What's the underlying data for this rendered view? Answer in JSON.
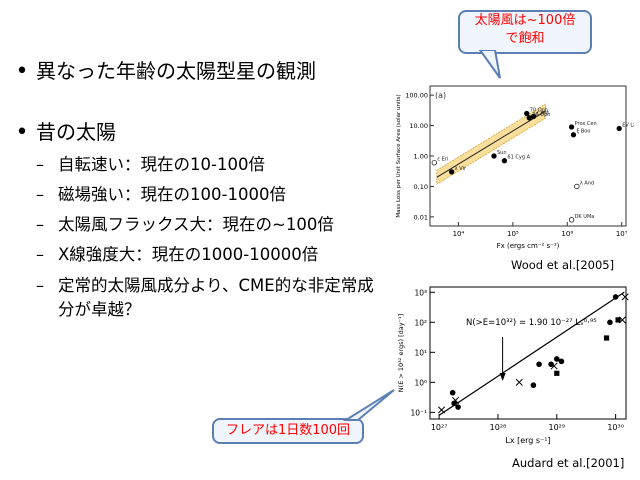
{
  "bullets": {
    "b1": "異なった年齢の太陽型星の観測",
    "b2": "昔の太陽",
    "subs": [
      "自転速い：現在の10-100倍",
      "磁場強い：現在の100-1000倍",
      "太陽風フラックス大：現在の~100倍",
      "X線強度大：現在の1000-10000倍",
      "定常的太陽風成分より、CME的な非定常成分が卓越？"
    ]
  },
  "callouts": {
    "top": [
      "太陽風は~100倍",
      "で飽和"
    ],
    "bottom": "フレアは1日数100回"
  },
  "captions": {
    "top": "Wood et al.[2005]",
    "bottom": "Audard et al.[2001]"
  },
  "chart_data": [
    {
      "type": "scatter",
      "panel_label": "(a)",
      "xlabel": "Fx (ergs cm⁻² s⁻¹)",
      "ylabel": "Mass Loss per Unit Surface Area (solar units)",
      "xscale": "log",
      "yscale": "log",
      "xlim": [
        3000,
        12000000
      ],
      "ylim": [
        0.005,
        200
      ],
      "xticks": [
        "10⁴",
        "10⁵",
        "10⁶",
        "10⁷"
      ],
      "yticks": [
        "0.01",
        "0.10",
        "1.00",
        "10.00",
        "100.00"
      ],
      "points": [
        {
          "x": 3600,
          "y": 0.6,
          "open": true,
          "label": "ε Eri"
        },
        {
          "x": 7500,
          "y": 0.3,
          "open": false,
          "label": "λ Vir"
        },
        {
          "x": 45000,
          "y": 1.0,
          "open": false,
          "label": "Sun"
        },
        {
          "x": 70000,
          "y": 0.7,
          "open": false,
          "label": "61 Cyg A"
        },
        {
          "x": 180000,
          "y": 25.0,
          "open": false,
          "label": "70 Oph"
        },
        {
          "x": 240000,
          "y": 20.0,
          "open": false,
          "label": "ε Ind"
        },
        {
          "x": 200000,
          "y": 18.0,
          "open": false,
          "label": "36 Oph"
        },
        {
          "x": 1200000,
          "y": 9.0,
          "open": false,
          "label": "Prox Cen"
        },
        {
          "x": 1300000,
          "y": 5.0,
          "open": false,
          "label": "ξ Boo"
        },
        {
          "x": 9000000,
          "y": 8.0,
          "open": false,
          "label": "EV Lac"
        },
        {
          "x": 1500000,
          "y": 0.1,
          "open": true,
          "label": "λ And"
        },
        {
          "x": 1200000,
          "y": 0.008,
          "open": true,
          "label": "DK UMa"
        }
      ],
      "fit_line": [
        [
          4000,
          0.2
        ],
        [
          400000,
          30
        ]
      ]
    },
    {
      "type": "scatter",
      "annotation": "N(>E=10³²) = 1.90 10⁻²⁷ Lₓ⁰·⁹⁵",
      "xlabel": "Lx [erg s⁻¹]",
      "ylabel": "N(E > 10³² ergs) [day⁻¹]",
      "xscale": "log",
      "yscale": "log",
      "xlim": [
        7e+26,
        1.5e+30
      ],
      "ylim": [
        0.06,
        1500
      ],
      "xticks": [
        "10²⁷",
        "10²⁸",
        "10²⁹",
        "10³⁰"
      ],
      "yticks": [
        "10⁻¹",
        "10⁰",
        "10¹",
        "10²",
        "10³"
      ],
      "series": [
        {
          "marker": "circle",
          "points": [
            [
              1.7e+27,
              0.45
            ],
            [
              1.8e+27,
              0.2
            ],
            [
              2.1e+27,
              0.15
            ],
            [
              4e+28,
              0.8
            ],
            [
              5e+28,
              4
            ],
            [
              8e+28,
              4
            ],
            [
              1e+29,
              6
            ],
            [
              1.2e+29,
              5
            ],
            [
              8e+29,
              100
            ],
            [
              1e+30,
              700
            ]
          ]
        },
        {
          "marker": "square",
          "points": [
            [
              1e+29,
              2
            ],
            [
              7e+29,
              30
            ],
            [
              1.1e+30,
              120
            ]
          ]
        },
        {
          "marker": "cross",
          "points": [
            [
              1.1e+27,
              0.12
            ],
            [
              1.9e+27,
              0.25
            ],
            [
              2.3e+28,
              1
            ],
            [
              9e+28,
              3.5
            ],
            [
              1.3e+30,
              120
            ],
            [
              1.45e+30,
              700
            ]
          ]
        }
      ],
      "fit_line": [
        [
          1e+27,
          0.08
        ],
        [
          1.4e+30,
          1000
        ]
      ],
      "arrow_x": 1.2e+28
    }
  ]
}
